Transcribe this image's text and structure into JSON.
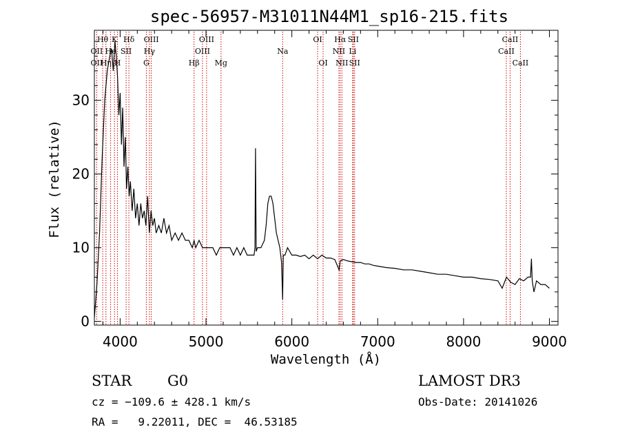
{
  "chart_data": {
    "type": "line",
    "title": "spec-56957-M31011N44M1_sp16-215.fits",
    "xlabel": "Wavelength (Å)",
    "ylabel": "Flux (relative)",
    "xlim": [
      3700,
      9100
    ],
    "ylim": [
      -0.5,
      39.5
    ],
    "x_ticks": [
      4000,
      5000,
      6000,
      7000,
      8000,
      9000
    ],
    "x_tick_labels": [
      "4000",
      "5000",
      "6000",
      "7000",
      "8000",
      "9000"
    ],
    "y_ticks": [
      0,
      10,
      20,
      30
    ],
    "y_tick_labels": [
      "0",
      "10",
      "20",
      "30"
    ],
    "grid": false,
    "series": [
      {
        "x": [
          3700,
          3730,
          3760,
          3790,
          3820,
          3850,
          3880,
          3900,
          3920,
          3940,
          3955,
          3970,
          3985,
          4000,
          4015,
          4030,
          4045,
          4060,
          4075,
          4090,
          4105,
          4120,
          4140,
          4160,
          4180,
          4200,
          4220,
          4240,
          4260,
          4280,
          4300,
          4320,
          4340,
          4360,
          4380,
          4400,
          4420,
          4450,
          4480,
          4510,
          4540,
          4570,
          4600,
          4640,
          4680,
          4720,
          4760,
          4800,
          4840,
          4861,
          4880,
          4920,
          4960,
          5000,
          5040,
          5080,
          5120,
          5160,
          5200,
          5240,
          5280,
          5320,
          5360,
          5400,
          5440,
          5480,
          5520,
          5560,
          5570,
          5577,
          5585,
          5600,
          5640,
          5680,
          5700,
          5720,
          5740,
          5760,
          5780,
          5800,
          5820,
          5840,
          5860,
          5880,
          5893,
          5900,
          5920,
          5950,
          6000,
          6050,
          6100,
          6150,
          6200,
          6250,
          6300,
          6350,
          6400,
          6450,
          6500,
          6550,
          6563,
          6580,
          6600,
          6650,
          6700,
          6750,
          6800,
          6850,
          6900,
          6950,
          7000,
          7100,
          7200,
          7300,
          7400,
          7500,
          7600,
          7700,
          7800,
          7900,
          8000,
          8100,
          8200,
          8300,
          8400,
          8450,
          8500,
          8550,
          8600,
          8650,
          8700,
          8750,
          8780,
          8790,
          8800,
          8820,
          8850,
          8900,
          8950,
          9000
        ],
        "values": [
          0.5,
          5,
          12,
          22,
          30,
          34,
          36,
          37,
          34,
          38,
          36,
          33,
          28,
          31,
          24,
          29,
          21,
          25,
          18,
          21,
          17,
          19,
          15,
          18,
          14,
          16,
          13,
          16,
          14,
          15,
          13,
          17,
          12,
          15,
          13,
          14,
          12,
          13,
          12,
          14,
          12,
          13,
          11,
          12,
          11,
          12,
          11,
          11,
          10,
          11,
          10,
          11,
          10,
          10,
          10,
          10,
          9,
          10,
          10,
          10,
          10,
          9,
          10,
          9,
          10,
          9,
          9,
          9,
          10,
          23.5,
          9.5,
          10,
          10,
          11,
          13,
          16,
          17,
          17,
          16,
          14,
          12,
          11,
          10,
          8,
          3,
          9,
          9,
          10,
          9,
          9,
          8.8,
          9,
          8.5,
          9,
          8.5,
          9,
          8.6,
          8.6,
          8.4,
          7,
          8.2,
          8.3,
          8.4,
          8.2,
          8.1,
          8,
          8,
          7.8,
          7.8,
          7.6,
          7.5,
          7.3,
          7.2,
          7,
          7,
          6.8,
          6.6,
          6.4,
          6.4,
          6.2,
          6,
          6,
          5.8,
          5.7,
          5.5,
          4.5,
          6,
          5.3,
          5,
          5.8,
          5.5,
          6,
          6,
          8.5,
          5.5,
          4,
          5.5,
          5,
          5,
          4.5
        ]
      }
    ],
    "spectral_lines": [
      {
        "label": "Hθ",
        "x": 3797,
        "row": 1
      },
      {
        "label": "OII",
        "x": 3727,
        "row": 2
      },
      {
        "label": "OII",
        "x": 3727,
        "row": 3
      },
      {
        "label": "He",
        "x": 3889,
        "row": 2
      },
      {
        "label": "Hη",
        "x": 3835,
        "row": 3
      },
      {
        "label": "K",
        "x": 3934,
        "row": 1
      },
      {
        "label": "H",
        "x": 3969,
        "row": 3
      },
      {
        "label": "Hδ",
        "x": 4102,
        "row": 1
      },
      {
        "label": "SII",
        "x": 4070,
        "row": 2
      },
      {
        "label": "OIII",
        "x": 4363,
        "row": 1
      },
      {
        "label": "Hγ",
        "x": 4341,
        "row": 2
      },
      {
        "label": "G",
        "x": 4305,
        "row": 3
      },
      {
        "label": "OIII",
        "x": 5007,
        "row": 1
      },
      {
        "label": "OIII",
        "x": 4959,
        "row": 2
      },
      {
        "label": "Hβ",
        "x": 4861,
        "row": 3
      },
      {
        "label": "Mg",
        "x": 5175,
        "row": 3
      },
      {
        "label": "Na",
        "x": 5893,
        "row": 2
      },
      {
        "label": "OI",
        "x": 6300,
        "row": 1
      },
      {
        "label": "OI",
        "x": 6364,
        "row": 3
      },
      {
        "label": "Hα",
        "x": 6563,
        "row": 1
      },
      {
        "label": "SII",
        "x": 6716,
        "row": 1
      },
      {
        "label": "NII",
        "x": 6548,
        "row": 2
      },
      {
        "label": "Li",
        "x": 6708,
        "row": 2
      },
      {
        "label": "NII",
        "x": 6583,
        "row": 3
      },
      {
        "label": "SII",
        "x": 6731,
        "row": 3
      },
      {
        "label": "CaII",
        "x": 8542,
        "row": 1
      },
      {
        "label": "CaII",
        "x": 8498,
        "row": 2
      },
      {
        "label": "CaII",
        "x": 8662,
        "row": 3
      }
    ],
    "line_marker_color": "#cc0000",
    "spectrum_color": "#000000"
  },
  "info": {
    "class_label": "STAR",
    "subclass_label": "G0",
    "survey_label": "LAMOST DR3",
    "cz_text": "cz = −109.6 ± 428.1 km/s",
    "obs_date_text": "Obs-Date: 20141026",
    "radec_text": "RA =   9.22011, DEC =  46.53185"
  }
}
